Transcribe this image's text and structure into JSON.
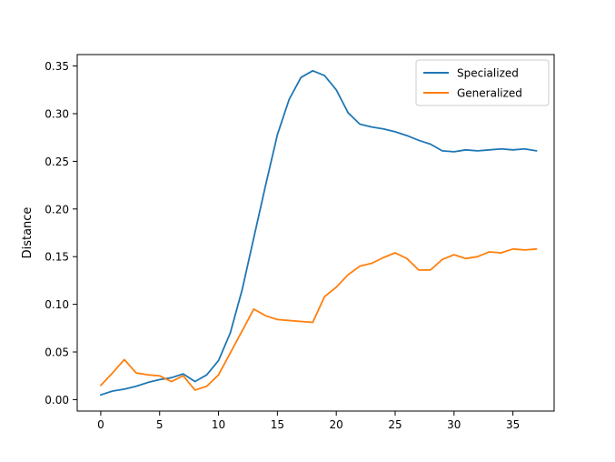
{
  "chart_data": {
    "type": "line",
    "title": "",
    "xlabel": "",
    "ylabel": "Distance",
    "xlim": [
      -2,
      38.5
    ],
    "ylim": [
      -0.012,
      0.362
    ],
    "xticks": [
      0,
      5,
      10,
      15,
      20,
      25,
      30,
      35
    ],
    "xtick_labels": [
      "0",
      "5",
      "10",
      "15",
      "20",
      "25",
      "30",
      "35"
    ],
    "yticks": [
      0.0,
      0.05,
      0.1,
      0.15,
      0.2,
      0.25,
      0.3,
      0.35
    ],
    "ytick_labels": [
      "0.00",
      "0.05",
      "0.10",
      "0.15",
      "0.20",
      "0.25",
      "0.30",
      "0.35"
    ],
    "grid": false,
    "legend_position": "top-right",
    "x": [
      0,
      1,
      2,
      3,
      4,
      5,
      6,
      7,
      8,
      9,
      10,
      11,
      12,
      13,
      14,
      15,
      16,
      17,
      18,
      19,
      20,
      21,
      22,
      23,
      24,
      25,
      26,
      27,
      28,
      29,
      30,
      31,
      32,
      33,
      34,
      35,
      36,
      37
    ],
    "series": [
      {
        "name": "Specialized",
        "color": "#1f77b4",
        "values": [
          0.005,
          0.009,
          0.011,
          0.014,
          0.018,
          0.021,
          0.023,
          0.027,
          0.019,
          0.026,
          0.041,
          0.07,
          0.115,
          0.17,
          0.225,
          0.278,
          0.315,
          0.338,
          0.345,
          0.34,
          0.325,
          0.301,
          0.289,
          0.286,
          0.284,
          0.281,
          0.277,
          0.272,
          0.268,
          0.261,
          0.26,
          0.262,
          0.261,
          0.262,
          0.263,
          0.262,
          0.263,
          0.261
        ]
      },
      {
        "name": "Generalized",
        "color": "#ff7f0e",
        "values": [
          0.015,
          0.028,
          0.042,
          0.028,
          0.026,
          0.025,
          0.019,
          0.025,
          0.01,
          0.014,
          0.026,
          0.049,
          0.072,
          0.095,
          0.088,
          0.084,
          0.083,
          0.082,
          0.081,
          0.108,
          0.118,
          0.131,
          0.14,
          0.143,
          0.149,
          0.154,
          0.148,
          0.136,
          0.136,
          0.147,
          0.152,
          0.148,
          0.15,
          0.155,
          0.154,
          0.158,
          0.157,
          0.158
        ]
      }
    ]
  }
}
